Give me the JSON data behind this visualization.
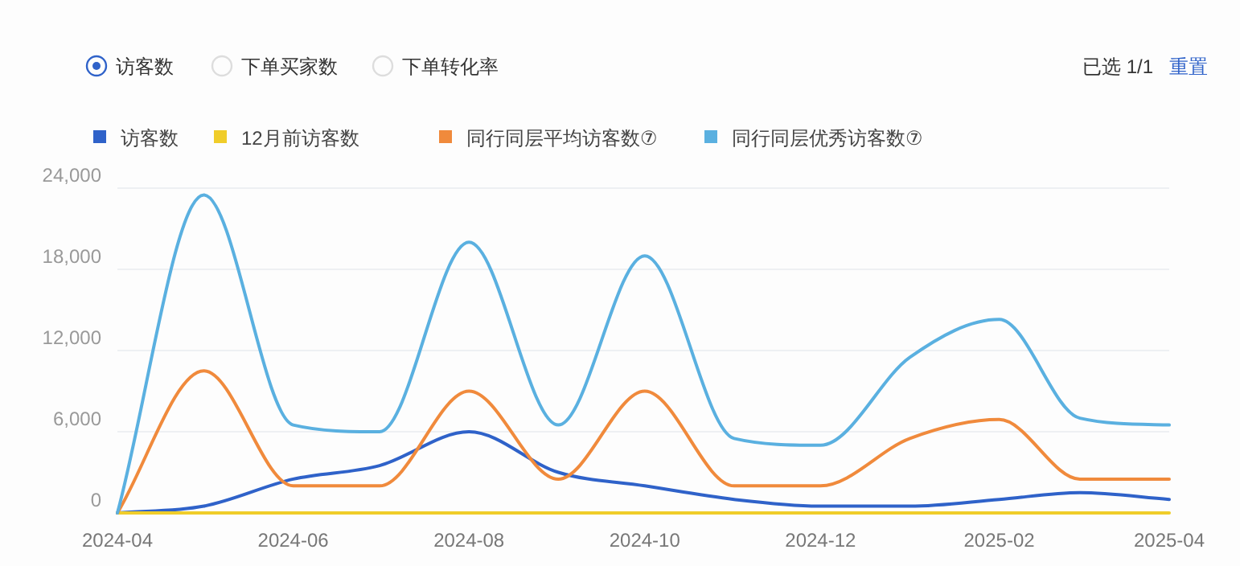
{
  "chart_data": {
    "type": "line",
    "annotations": [
      "访客数",
      "下单买家数",
      "下单转化率",
      "已选 1/1",
      "重置"
    ],
    "x": [
      "2024-04",
      "2024-05",
      "2024-06",
      "2024-07",
      "2024-08",
      "2024-09",
      "2024-10",
      "2024-11",
      "2024-12",
      "2025-01",
      "2025-02",
      "2025-03",
      "2025-04"
    ],
    "series": [
      {
        "name": "访客数",
        "color": "#2f62c9",
        "values": [
          0,
          500,
          2500,
          3500,
          6000,
          3000,
          2000,
          1000,
          500,
          500,
          1000,
          1500,
          1000
        ]
      },
      {
        "name": "12月前访客数",
        "color": "#f0cd2a",
        "values": [
          0,
          0,
          0,
          0,
          0,
          0,
          0,
          0,
          0,
          0,
          0,
          0,
          0
        ]
      },
      {
        "name": "同行同层平均访客数⑦",
        "color": "#f08a3c",
        "values": [
          0,
          10500,
          2000,
          2000,
          9000,
          2500,
          9000,
          2000,
          2000,
          5500,
          6900,
          2500,
          2500
        ]
      },
      {
        "name": "同行同层优秀访客数⑦",
        "color": "#5ab0e0",
        "values": [
          0,
          23500,
          6500,
          6000,
          20000,
          6500,
          19000,
          5500,
          5000,
          11500,
          14300,
          7000,
          6500
        ]
      }
    ],
    "xlim": [
      "2024-04",
      "2025-04"
    ],
    "xticks": [
      "2024-04",
      "2024-06",
      "2024-08",
      "2024-10",
      "2024-12",
      "2025-02",
      "2025-04"
    ],
    "ylim": [
      0,
      24000
    ],
    "yticks": [
      0,
      {
        "value": 6000,
        "label": "6,000"
      },
      {
        "value": 12000,
        "label": "12,000"
      },
      {
        "value": 18000,
        "label": "18,000"
      },
      {
        "value": 24000,
        "label": "24,000"
      }
    ],
    "grid": "y",
    "legend": "top left"
  }
}
